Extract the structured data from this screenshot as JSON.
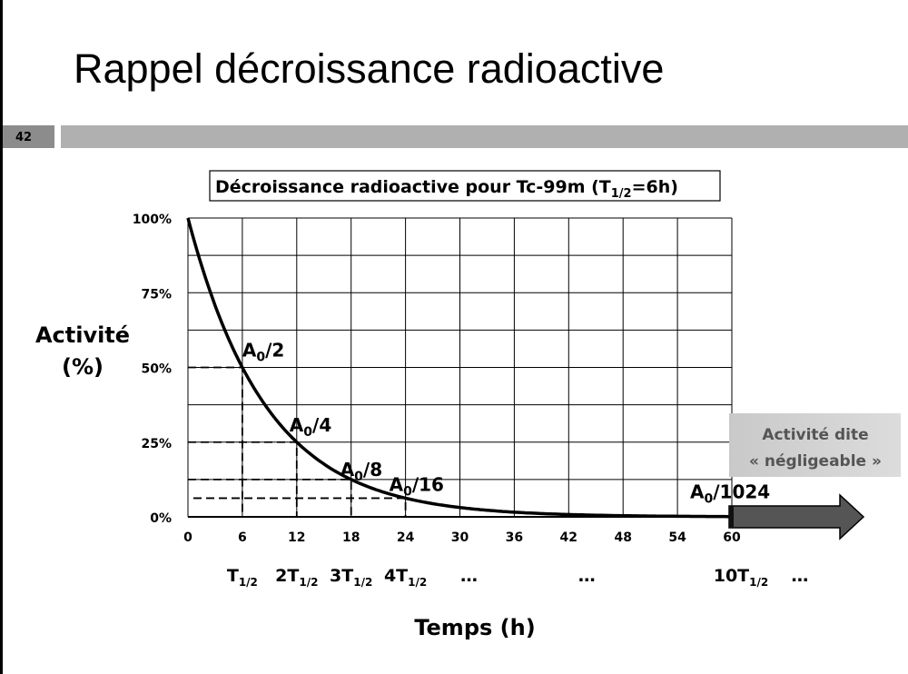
{
  "slide": {
    "title": "Rappel décroissance radioactive",
    "number": "42"
  },
  "chart_data": {
    "type": "line",
    "title": "Décroissance radioactive pour Tc-99m (T1/2=6h)",
    "title_parts": {
      "main": "Décroissance radioactive pour Tc-99m (T",
      "sub": "1/2",
      "end": "=6h)"
    },
    "xlabel": "Temps (h)",
    "ylabel_line1": "Activité",
    "ylabel_line2": "(%)",
    "xlim": [
      0,
      60
    ],
    "ylim": [
      0,
      100
    ],
    "x_ticks": [
      "0",
      "6",
      "12",
      "18",
      "24",
      "30",
      "36",
      "42",
      "48",
      "54",
      "60"
    ],
    "y_ticks": [
      "0%",
      "25%",
      "50%",
      "75%",
      "100%"
    ],
    "half_life_h": 6,
    "series": [
      {
        "name": "Activité",
        "function": "100*2^(-t/6)"
      }
    ],
    "annotations": [
      {
        "label": "A",
        "sub": "0",
        "rest": "/2",
        "x": 6,
        "y": 50
      },
      {
        "label": "A",
        "sub": "0",
        "rest": "/4",
        "x": 12,
        "y": 25
      },
      {
        "label": "A",
        "sub": "0",
        "rest": "/8",
        "x": 18,
        "y": 12.5
      },
      {
        "label": "A",
        "sub": "0",
        "rest": "/16",
        "x": 24,
        "y": 6.25
      },
      {
        "label": "A",
        "sub": "0",
        "rest": "/1024",
        "x": 60,
        "y": 0.098
      }
    ],
    "period_labels": [
      {
        "pre": "T",
        "sub": "1/2",
        "x": 6
      },
      {
        "pre": "2T",
        "sub": "1/2",
        "x": 12
      },
      {
        "pre": "3T",
        "sub": "1/2",
        "x": 18
      },
      {
        "pre": "4T",
        "sub": "1/2",
        "x": 24
      },
      {
        "pre": "…",
        "sub": "",
        "x": 31
      },
      {
        "pre": "…",
        "sub": "",
        "x": 44
      },
      {
        "pre": "10T",
        "sub": "1/2",
        "x": 61
      },
      {
        "pre": "…",
        "sub": "",
        "x": 67.5
      }
    ],
    "negligible_box": {
      "line1": "Activité dite",
      "line2": "« négligeable »"
    }
  }
}
